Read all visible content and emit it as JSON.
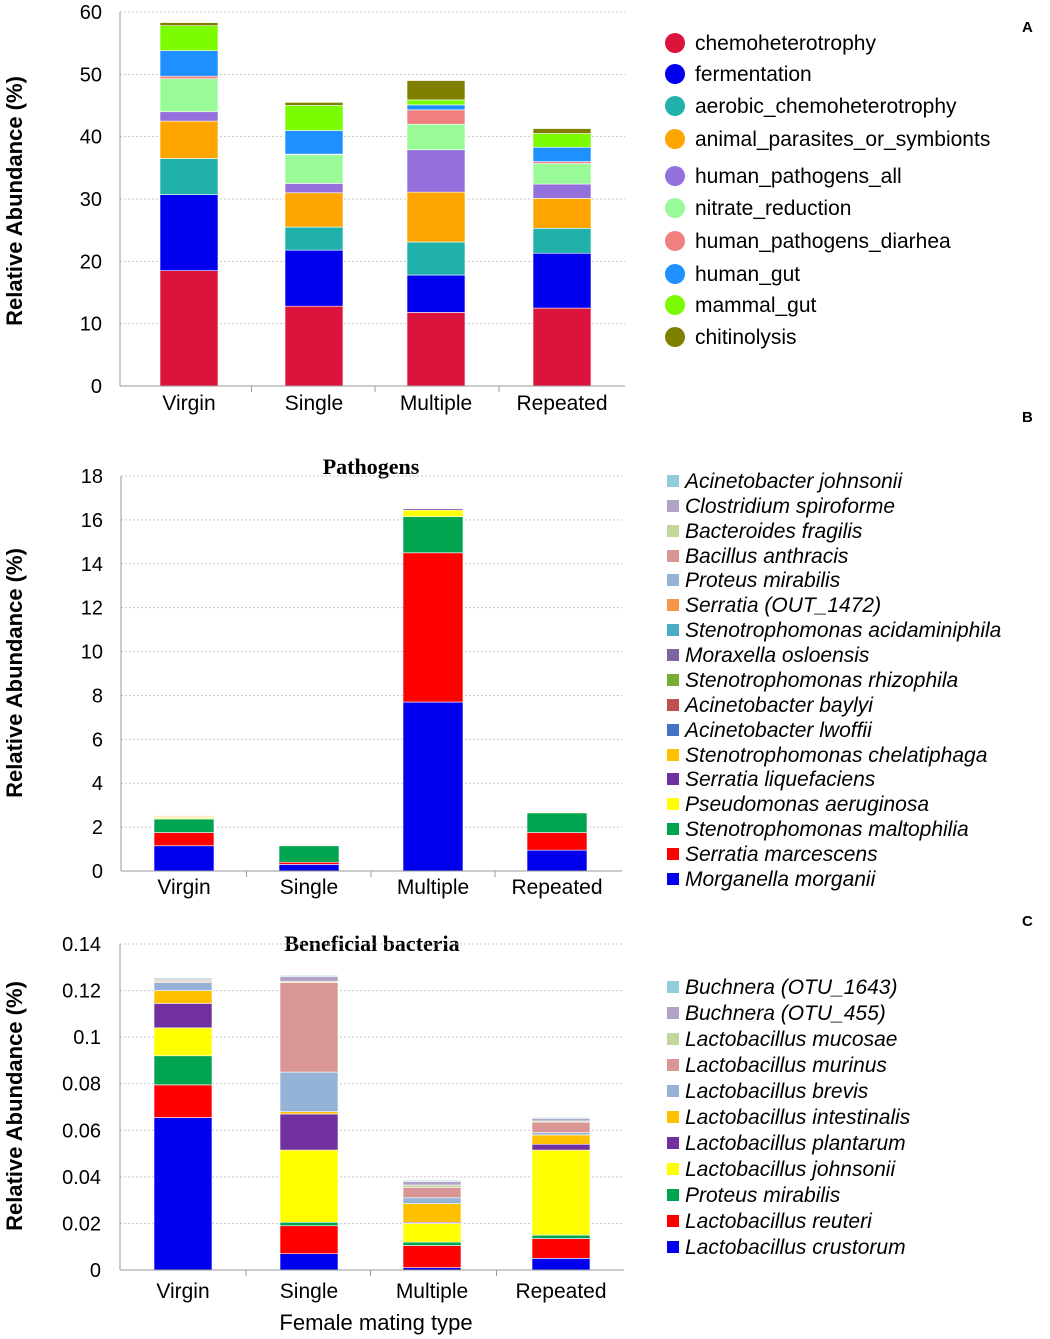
{
  "chart_data": [
    {
      "panel_label": "A",
      "type": "bar",
      "stacked": true,
      "title": "",
      "ylabel": "Relative Abundance (%)",
      "xlabel": "",
      "ylim": [
        0,
        60
      ],
      "yticks": [
        "0",
        "10",
        "20",
        "30",
        "40",
        "50",
        "60"
      ],
      "categories": [
        "Virgin",
        "Single",
        "Multiple",
        "Repeated"
      ],
      "series": [
        {
          "name": "chemoheterotrophy",
          "color": "#dc143c",
          "values": [
            18.5,
            12.8,
            11.8,
            12.5
          ]
        },
        {
          "name": "fermentation",
          "color": "#0000ee",
          "values": [
            12.2,
            9.0,
            6.0,
            8.8
          ]
        },
        {
          "name": "aerobic_chemoheterotrophy",
          "color": "#20b2aa",
          "values": [
            5.8,
            3.7,
            5.3,
            4.0
          ]
        },
        {
          "name": "animal_parasites_or_symbionts",
          "color": "#ffa500",
          "values": [
            6.0,
            5.5,
            8.0,
            4.8
          ]
        },
        {
          "name": "human_pathogens_all",
          "color": "#9370db",
          "values": [
            1.5,
            1.5,
            6.8,
            2.3
          ]
        },
        {
          "name": "nitrate_reduction",
          "color": "#98fb98",
          "values": [
            5.3,
            4.6,
            4.1,
            3.3
          ]
        },
        {
          "name": "human_pathogens_diarhea",
          "color": "#f08080",
          "values": [
            0.4,
            0.1,
            2.3,
            0.3
          ]
        },
        {
          "name": "human_gut",
          "color": "#1e90ff",
          "values": [
            4.1,
            3.8,
            0.8,
            2.3
          ]
        },
        {
          "name": "mammal_gut",
          "color": "#7cfc00",
          "values": [
            4.0,
            4.0,
            0.8,
            2.2
          ]
        },
        {
          "name": "chitinolysis",
          "color": "#808000",
          "values": [
            0.5,
            0.5,
            3.1,
            0.8
          ]
        }
      ]
    },
    {
      "panel_label": "B",
      "type": "bar",
      "stacked": true,
      "title": "Pathogens",
      "ylabel": "Relative Abundance (%)",
      "xlabel": "",
      "ylim": [
        0,
        18
      ],
      "yticks": [
        "0",
        "2",
        "4",
        "6",
        "8",
        "10",
        "12",
        "14",
        "16",
        "18"
      ],
      "categories": [
        "Virgin",
        "Single",
        "Multiple",
        "Repeated"
      ],
      "series": [
        {
          "name": "Morganella morganii",
          "color": "#0000ee",
          "values": [
            1.15,
            0.3,
            7.7,
            0.95
          ]
        },
        {
          "name": "Serratia marcescens",
          "color": "#ff0000",
          "values": [
            0.6,
            0.1,
            6.8,
            0.8
          ]
        },
        {
          "name": "Stenotrophomonas maltophilia",
          "color": "#00a550",
          "values": [
            0.62,
            0.75,
            1.65,
            0.9
          ]
        },
        {
          "name": "Pseudomonas aeruginosa",
          "color": "#ffff00",
          "values": [
            0.05,
            0.03,
            0.3,
            0.04
          ]
        },
        {
          "name": "Serratia liquefaciens",
          "color": "#7030a0",
          "values": [
            0.02,
            0.02,
            0.06,
            0.02
          ]
        },
        {
          "name": "Stenotrophomonas chelatiphaga",
          "color": "#ffc000",
          "values": [
            0.05,
            0.02,
            0.03,
            0.02
          ]
        },
        {
          "name": "Acinetobacter lwoffii",
          "color": "#4472c4",
          "values": [
            0.01,
            0.01,
            0.01,
            0.01
          ]
        },
        {
          "name": "Acinetobacter baylyi",
          "color": "#c0504d",
          "values": [
            0.03,
            0.01,
            0.02,
            0.02
          ]
        },
        {
          "name": "Stenotrophomonas rhizophila",
          "color": "#77ac30",
          "values": [
            0.01,
            0.01,
            0.01,
            0.01
          ]
        },
        {
          "name": "Moraxella osloensis",
          "color": "#8064a2",
          "values": [
            0.01,
            0.01,
            0.02,
            0.01
          ]
        },
        {
          "name": "Stenotrophomonas acidaminiphila",
          "color": "#4bacc6",
          "values": [
            0.01,
            0.01,
            0.01,
            0.01
          ]
        },
        {
          "name": "Serratia (OUT_1472)",
          "color": "#f79646",
          "values": [
            0.01,
            0.01,
            0.02,
            0.01
          ]
        },
        {
          "name": "Proteus mirabilis",
          "color": "#95b3d7",
          "values": [
            0.01,
            0.01,
            0.03,
            0.01
          ]
        },
        {
          "name": "Bacillus anthracis",
          "color": "#d99694",
          "values": [
            0.01,
            0.01,
            0.02,
            0.01
          ]
        },
        {
          "name": "Bacteroides fragilis",
          "color": "#c3d69b",
          "values": [
            0.01,
            0.01,
            0.02,
            0.01
          ]
        },
        {
          "name": "Clostridium spiroforme",
          "color": "#b3a2c7",
          "values": [
            0.01,
            0.01,
            0.01,
            0.01
          ]
        },
        {
          "name": "Acinetobacter johnsonii",
          "color": "#93cddd",
          "values": [
            0.01,
            0.01,
            0.01,
            0.01
          ]
        }
      ]
    },
    {
      "panel_label": "C",
      "type": "bar",
      "stacked": true,
      "title": "Beneficial bacteria",
      "ylabel": "Relative Abundance (%)",
      "xlabel": "Female mating type",
      "ylim": [
        0,
        0.14
      ],
      "yticks": [
        "0",
        "0.02",
        "0.04",
        "0.06",
        "0.08",
        "0.1",
        "0.12",
        "0.14"
      ],
      "categories": [
        "Virgin",
        "Single",
        "Multiple",
        "Repeated"
      ],
      "series": [
        {
          "name": "Lactobacillus crustorum",
          "color": "#0000ee",
          "values": [
            0.0655,
            0.007,
            0.001,
            0.005
          ]
        },
        {
          "name": "Lactobacillus reuteri",
          "color": "#ff0000",
          "values": [
            0.014,
            0.012,
            0.0095,
            0.0085
          ]
        },
        {
          "name": "Proteus mirabilis",
          "color": "#00a550",
          "values": [
            0.0125,
            0.0015,
            0.0015,
            0.0015
          ]
        },
        {
          "name": "Lactobacillus johnsonii",
          "color": "#ffff00",
          "values": [
            0.012,
            0.031,
            0.008,
            0.0365
          ]
        },
        {
          "name": "Lactobacillus plantarum",
          "color": "#7030a0",
          "values": [
            0.0105,
            0.0155,
            0.0005,
            0.0025
          ]
        },
        {
          "name": "Lactobacillus intestinalis",
          "color": "#ffc000",
          "values": [
            0.0055,
            0.001,
            0.008,
            0.004
          ]
        },
        {
          "name": "Lactobacillus brevis",
          "color": "#95b3d7",
          "values": [
            0.0035,
            0.017,
            0.0025,
            0.001
          ]
        },
        {
          "name": "Lactobacillus murinus",
          "color": "#d99694",
          "values": [
            0.0005,
            0.0385,
            0.0045,
            0.0045
          ]
        },
        {
          "name": "Lactobacillus mucosae",
          "color": "#c3d69b",
          "values": [
            0.0005,
            0.0005,
            0.001,
            0.0005
          ]
        },
        {
          "name": "Buchnera (OTU_455)",
          "color": "#b3a2c7",
          "values": [
            0.0005,
            0.002,
            0.0015,
            0.001
          ]
        },
        {
          "name": "Buchnera (OTU_1643)",
          "color": "#93cddd",
          "values": [
            0.0005,
            0.0005,
            0.0005,
            0.0005
          ]
        }
      ]
    }
  ]
}
